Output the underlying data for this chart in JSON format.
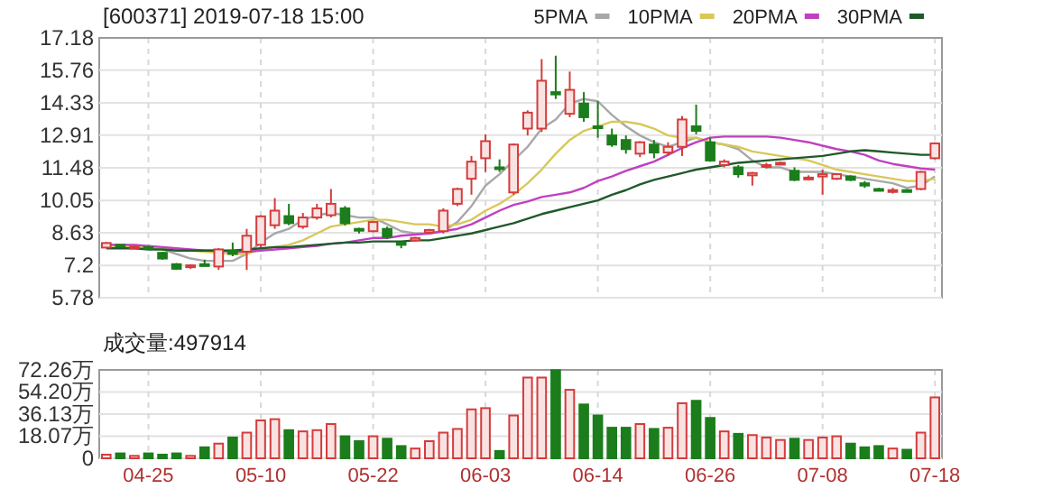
{
  "chart_data": [
    {
      "type": "candlestick",
      "title": "[600371] 2019-07-18 15:00",
      "categories": [
        null,
        null,
        null,
        null,
        null,
        null,
        null,
        null,
        null,
        null,
        null,
        null,
        null,
        null,
        null,
        null,
        null,
        null,
        null,
        null,
        null,
        null,
        null,
        null,
        null,
        null,
        null,
        null,
        null,
        null,
        null,
        null,
        null,
        null,
        null,
        null,
        null,
        null,
        null,
        null,
        null,
        null,
        null,
        null,
        null,
        null,
        null,
        null,
        null,
        null,
        null,
        null,
        null,
        null,
        null,
        null,
        null,
        null,
        null,
        null
      ],
      "ohlc": [
        [
          7.98,
          8.22,
          7.95,
          8.18
        ],
        [
          8.1,
          8.12,
          7.98,
          8.02
        ],
        [
          7.98,
          8.05,
          7.95,
          8.02
        ],
        [
          8.0,
          8.05,
          7.88,
          7.92
        ],
        [
          7.75,
          7.8,
          7.45,
          7.5
        ],
        [
          7.25,
          7.3,
          7.0,
          7.05
        ],
        [
          7.12,
          7.25,
          7.05,
          7.2
        ],
        [
          7.25,
          7.45,
          7.15,
          7.2
        ],
        [
          7.15,
          7.95,
          7.0,
          7.9
        ],
        [
          7.85,
          8.2,
          7.6,
          7.7
        ],
        [
          7.8,
          8.8,
          7.0,
          8.5
        ],
        [
          8.1,
          9.4,
          8.0,
          9.35
        ],
        [
          8.96,
          10.15,
          8.8,
          9.6
        ],
        [
          9.36,
          9.9,
          8.96,
          9.05
        ],
        [
          8.9,
          9.5,
          8.8,
          9.3
        ],
        [
          9.3,
          9.9,
          9.2,
          9.7
        ],
        [
          9.4,
          10.55,
          9.3,
          9.9
        ],
        [
          9.7,
          9.8,
          8.95,
          9.05
        ],
        [
          8.8,
          8.85,
          8.6,
          8.75
        ],
        [
          8.7,
          9.15,
          8.65,
          9.1
        ],
        [
          8.8,
          8.9,
          8.35,
          8.45
        ],
        [
          8.2,
          8.25,
          7.95,
          8.1
        ],
        [
          8.3,
          8.45,
          8.25,
          8.4
        ],
        [
          8.65,
          8.8,
          8.6,
          8.75
        ],
        [
          8.7,
          9.7,
          8.6,
          9.6
        ],
        [
          9.9,
          10.6,
          9.8,
          10.55
        ],
        [
          11.0,
          12.0,
          10.3,
          11.75
        ],
        [
          11.9,
          12.95,
          11.3,
          12.65
        ],
        [
          11.5,
          11.85,
          11.3,
          11.45
        ],
        [
          10.4,
          12.55,
          10.3,
          12.5
        ],
        [
          13.2,
          14.0,
          12.9,
          13.9
        ],
        [
          13.2,
          16.25,
          13.05,
          15.3
        ],
        [
          14.8,
          16.4,
          14.5,
          14.7
        ],
        [
          13.85,
          15.7,
          13.7,
          14.9
        ],
        [
          14.3,
          14.8,
          13.5,
          13.7
        ],
        [
          13.3,
          14.4,
          12.8,
          13.25
        ],
        [
          12.9,
          13.2,
          12.4,
          12.5
        ],
        [
          12.7,
          12.9,
          12.1,
          12.3
        ],
        [
          12.1,
          12.65,
          11.95,
          12.6
        ],
        [
          12.5,
          12.7,
          11.9,
          12.15
        ],
        [
          12.15,
          12.6,
          12.0,
          12.4
        ],
        [
          12.4,
          13.75,
          12.0,
          13.6
        ],
        [
          13.3,
          14.25,
          12.95,
          13.1
        ],
        [
          12.6,
          12.8,
          11.75,
          11.8
        ],
        [
          11.6,
          11.85,
          11.5,
          11.75
        ],
        [
          11.5,
          11.6,
          11.05,
          11.2
        ],
        [
          11.15,
          11.3,
          10.7,
          11.25
        ],
        [
          11.55,
          11.7,
          11.45,
          11.6
        ],
        [
          11.65,
          11.75,
          11.6,
          11.7
        ],
        [
          11.35,
          11.5,
          10.9,
          10.95
        ],
        [
          11.0,
          11.15,
          10.95,
          11.05
        ],
        [
          11.1,
          11.4,
          10.3,
          11.2
        ],
        [
          11.0,
          11.25,
          10.95,
          11.2
        ],
        [
          11.1,
          11.15,
          10.9,
          10.95
        ],
        [
          10.8,
          10.9,
          10.6,
          10.7
        ],
        [
          10.55,
          10.6,
          10.45,
          10.5
        ],
        [
          10.45,
          10.6,
          10.35,
          10.5
        ],
        [
          10.5,
          10.55,
          10.4,
          10.45
        ],
        [
          10.55,
          11.35,
          10.5,
          11.3
        ],
        [
          11.9,
          12.6,
          11.85,
          12.55
        ]
      ],
      "colors": [
        "#d43c3c",
        "#1b7d1b",
        "#d43c3c",
        "#1b7d1b",
        "#1b7d1b",
        "#1b7d1b",
        "#d43c3c",
        "#1b7d1b",
        "#d43c3c",
        "#1b7d1b",
        "#d43c3c",
        "#d43c3c",
        "#d43c3c",
        "#1b7d1b",
        "#d43c3c",
        "#d43c3c",
        "#d43c3c",
        "#1b7d1b",
        "#1b7d1b",
        "#d43c3c",
        "#1b7d1b",
        "#1b7d1b",
        "#d43c3c",
        "#d43c3c",
        "#d43c3c",
        "#d43c3c",
        "#d43c3c",
        "#d43c3c",
        "#1b7d1b",
        "#d43c3c",
        "#d43c3c",
        "#d43c3c",
        "#1b7d1b",
        "#d43c3c",
        "#1b7d1b",
        "#1b7d1b",
        "#1b7d1b",
        "#1b7d1b",
        "#d43c3c",
        "#1b7d1b",
        "#d43c3c",
        "#d43c3c",
        "#1b7d1b",
        "#1b7d1b",
        "#d43c3c",
        "#1b7d1b",
        "#d43c3c",
        "#d43c3c",
        "#d43c3c",
        "#1b7d1b",
        "#d43c3c",
        "#d43c3c",
        "#d43c3c",
        "#1b7d1b",
        "#1b7d1b",
        "#1b7d1b",
        "#d43c3c",
        "#1b7d1b",
        "#d43c3c",
        "#d43c3c"
      ],
      "series": [
        {
          "name": "5PMA",
          "type": "line",
          "color": "#a8a8a8",
          "values": [
            8.1,
            8.1,
            8.05,
            8.0,
            7.9,
            7.7,
            7.5,
            7.4,
            7.4,
            7.4,
            7.7,
            8.2,
            8.6,
            8.8,
            9.2,
            9.4,
            9.5,
            9.4,
            9.3,
            9.3,
            9.0,
            8.7,
            8.6,
            8.6,
            8.7,
            9.1,
            9.8,
            10.7,
            11.2,
            11.8,
            12.4,
            13.2,
            13.6,
            14.3,
            14.5,
            14.4,
            13.8,
            13.3,
            12.9,
            12.6,
            12.4,
            12.6,
            12.8,
            12.6,
            12.5,
            12.3,
            11.8,
            11.5,
            11.5,
            11.3,
            11.3,
            11.3,
            11.2,
            11.1,
            11.0,
            10.9,
            10.8,
            10.6,
            10.7,
            11.1
          ]
        },
        {
          "name": "10PMA",
          "type": "line",
          "color": "#d8c85a",
          "values": [
            8.05,
            8.05,
            8.0,
            8.0,
            7.95,
            7.9,
            7.85,
            7.8,
            7.75,
            7.7,
            7.7,
            7.9,
            8.0,
            8.1,
            8.3,
            8.6,
            8.9,
            9.0,
            9.1,
            9.2,
            9.2,
            9.1,
            9.0,
            9.0,
            8.9,
            9.0,
            9.2,
            9.6,
            9.9,
            10.3,
            10.8,
            11.4,
            12.1,
            12.7,
            13.1,
            13.3,
            13.5,
            13.5,
            13.4,
            13.2,
            12.9,
            12.8,
            12.8,
            12.6,
            12.5,
            12.4,
            12.2,
            12.1,
            12.0,
            11.9,
            11.8,
            11.6,
            11.4,
            11.3,
            11.2,
            11.1,
            11.0,
            10.9,
            10.9,
            11.0
          ]
        },
        {
          "name": "20PMA",
          "type": "line",
          "color": "#c040c0",
          "values": [
            8.1,
            8.1,
            8.1,
            8.05,
            8.0,
            7.95,
            7.9,
            7.85,
            7.85,
            7.8,
            7.8,
            7.85,
            7.9,
            7.95,
            8.0,
            8.05,
            8.15,
            8.2,
            8.3,
            8.4,
            8.4,
            8.5,
            8.55,
            8.6,
            8.7,
            8.8,
            9.0,
            9.3,
            9.6,
            9.85,
            10.0,
            10.2,
            10.3,
            10.4,
            10.6,
            10.9,
            11.1,
            11.35,
            11.55,
            11.75,
            12.05,
            12.35,
            12.6,
            12.8,
            12.85,
            12.85,
            12.85,
            12.85,
            12.8,
            12.7,
            12.6,
            12.45,
            12.3,
            12.2,
            12.05,
            11.8,
            11.65,
            11.55,
            11.45,
            11.4
          ]
        },
        {
          "name": "30PMA",
          "type": "line",
          "color": "#1f5a2a",
          "values": [
            7.95,
            7.95,
            7.95,
            7.9,
            7.9,
            7.85,
            7.85,
            7.85,
            7.85,
            7.85,
            7.9,
            7.95,
            8.0,
            8.0,
            8.05,
            8.1,
            8.15,
            8.2,
            8.2,
            8.25,
            8.25,
            8.25,
            8.3,
            8.3,
            8.4,
            8.5,
            8.6,
            8.75,
            8.9,
            9.05,
            9.25,
            9.45,
            9.6,
            9.75,
            9.9,
            10.05,
            10.3,
            10.5,
            10.75,
            10.95,
            11.1,
            11.25,
            11.4,
            11.5,
            11.6,
            11.7,
            11.75,
            11.8,
            11.85,
            11.9,
            11.95,
            12.0,
            12.1,
            12.2,
            12.25,
            12.2,
            12.15,
            12.1,
            12.05,
            12.05
          ]
        }
      ],
      "ylim": [
        5.78,
        17.18
      ],
      "yticks": [
        5.78,
        7.2,
        8.63,
        10.05,
        11.48,
        12.91,
        14.33,
        15.76,
        17.18
      ],
      "grid": true,
      "legend": "top right",
      "tick_labels": "y"
    },
    {
      "type": "bar",
      "title": "成交量:497914",
      "categories": [
        null,
        null,
        null,
        "04-25",
        null,
        null,
        null,
        null,
        null,
        null,
        null,
        "05-10",
        null,
        null,
        null,
        null,
        null,
        null,
        null,
        "05-22",
        null,
        null,
        null,
        null,
        null,
        null,
        null,
        "06-03",
        null,
        null,
        null,
        null,
        null,
        null,
        null,
        "06-14",
        null,
        null,
        null,
        null,
        null,
        null,
        null,
        "06-26",
        null,
        null,
        null,
        null,
        null,
        null,
        null,
        "07-08",
        null,
        null,
        null,
        null,
        null,
        null,
        null,
        "07-18"
      ],
      "values": [
        3,
        4,
        2,
        4,
        3,
        4,
        2,
        9,
        12,
        17,
        21,
        31,
        32,
        23,
        22,
        23,
        28,
        18,
        14,
        18,
        16,
        10,
        8,
        14,
        21,
        24,
        40,
        41,
        6,
        35,
        66,
        66,
        72,
        56,
        44,
        35,
        25,
        25,
        28,
        24,
        25,
        45,
        47,
        33,
        22,
        20,
        19,
        17,
        15,
        16,
        15,
        17,
        18,
        12,
        9,
        10,
        8,
        7,
        21,
        49.79
      ],
      "colors": [
        "#d43c3c",
        "#1b7d1b",
        "#d43c3c",
        "#1b7d1b",
        "#1b7d1b",
        "#1b7d1b",
        "#d43c3c",
        "#1b7d1b",
        "#d43c3c",
        "#1b7d1b",
        "#d43c3c",
        "#d43c3c",
        "#d43c3c",
        "#1b7d1b",
        "#d43c3c",
        "#d43c3c",
        "#d43c3c",
        "#1b7d1b",
        "#1b7d1b",
        "#d43c3c",
        "#1b7d1b",
        "#1b7d1b",
        "#d43c3c",
        "#d43c3c",
        "#d43c3c",
        "#d43c3c",
        "#d43c3c",
        "#d43c3c",
        "#1b7d1b",
        "#d43c3c",
        "#d43c3c",
        "#d43c3c",
        "#1b7d1b",
        "#d43c3c",
        "#1b7d1b",
        "#1b7d1b",
        "#1b7d1b",
        "#1b7d1b",
        "#d43c3c",
        "#1b7d1b",
        "#d43c3c",
        "#d43c3c",
        "#1b7d1b",
        "#1b7d1b",
        "#d43c3c",
        "#1b7d1b",
        "#d43c3c",
        "#d43c3c",
        "#d43c3c",
        "#1b7d1b",
        "#d43c3c",
        "#d43c3c",
        "#d43c3c",
        "#1b7d1b",
        "#1b7d1b",
        "#1b7d1b",
        "#d43c3c",
        "#1b7d1b",
        "#d43c3c",
        "#d43c3c"
      ],
      "ylim": [
        0,
        72.26
      ],
      "yticks": [
        0,
        {
          "value": 18.07,
          "label": "18.07万"
        },
        {
          "value": 36.13,
          "label": "36.13万"
        },
        {
          "value": 54.2,
          "label": "54.20万"
        },
        {
          "value": 72.26,
          "label": "72.26万"
        }
      ],
      "grid": true
    }
  ]
}
